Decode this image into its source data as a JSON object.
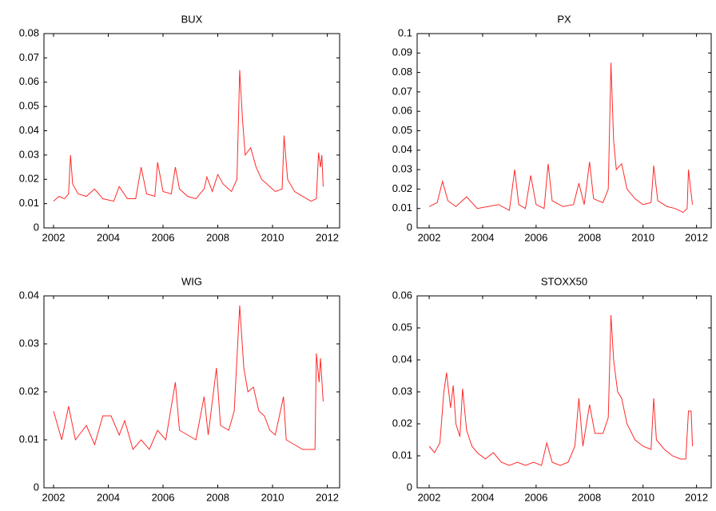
{
  "chart_data": [
    {
      "type": "line",
      "title": "BUX",
      "x": [
        2002.0,
        2002.2,
        2002.4,
        2002.55,
        2002.62,
        2002.7,
        2002.9,
        2003.2,
        2003.5,
        2003.8,
        2004.2,
        2004.4,
        2004.7,
        2005.0,
        2005.2,
        2005.4,
        2005.7,
        2005.8,
        2006.0,
        2006.3,
        2006.45,
        2006.6,
        2006.9,
        2007.2,
        2007.5,
        2007.6,
        2007.8,
        2008.0,
        2008.2,
        2008.5,
        2008.7,
        2008.8,
        2008.9,
        2009.0,
        2009.2,
        2009.4,
        2009.6,
        2009.9,
        2010.1,
        2010.35,
        2010.42,
        2010.55,
        2010.8,
        2011.1,
        2011.4,
        2011.6,
        2011.68,
        2011.75,
        2011.8,
        2011.85
      ],
      "series": [
        {
          "color": "#ff2a2a",
          "values": [
            0.011,
            0.013,
            0.012,
            0.014,
            0.03,
            0.018,
            0.014,
            0.013,
            0.016,
            0.012,
            0.011,
            0.017,
            0.012,
            0.012,
            0.025,
            0.014,
            0.013,
            0.027,
            0.015,
            0.014,
            0.025,
            0.016,
            0.013,
            0.012,
            0.016,
            0.021,
            0.015,
            0.022,
            0.018,
            0.015,
            0.02,
            0.065,
            0.045,
            0.03,
            0.033,
            0.025,
            0.02,
            0.017,
            0.015,
            0.016,
            0.038,
            0.02,
            0.015,
            0.013,
            0.011,
            0.012,
            0.031,
            0.025,
            0.03,
            0.017
          ]
        }
      ],
      "xlim": [
        2001.65,
        2012.45
      ],
      "xticks": [
        2002,
        2004,
        2006,
        2008,
        2010,
        2012
      ],
      "ylim": [
        0,
        0.08
      ],
      "yticks": [
        0,
        0.01,
        0.02,
        0.03,
        0.04,
        0.05,
        0.06,
        0.07,
        0.08
      ]
    },
    {
      "type": "line",
      "title": "PX",
      "x": [
        2002.0,
        2002.3,
        2002.5,
        2002.7,
        2003.0,
        2003.4,
        2003.8,
        2004.2,
        2004.6,
        2005.0,
        2005.2,
        2005.35,
        2005.6,
        2005.8,
        2006.0,
        2006.3,
        2006.45,
        2006.6,
        2007.0,
        2007.4,
        2007.6,
        2007.8,
        2008.0,
        2008.15,
        2008.5,
        2008.7,
        2008.8,
        2008.9,
        2009.0,
        2009.2,
        2009.4,
        2009.7,
        2010.0,
        2010.3,
        2010.4,
        2010.55,
        2010.9,
        2011.2,
        2011.5,
        2011.65,
        2011.7,
        2011.78,
        2011.85
      ],
      "series": [
        {
          "color": "#ff2a2a",
          "values": [
            0.011,
            0.013,
            0.024,
            0.014,
            0.011,
            0.016,
            0.01,
            0.011,
            0.012,
            0.009,
            0.03,
            0.012,
            0.01,
            0.027,
            0.012,
            0.01,
            0.033,
            0.014,
            0.011,
            0.012,
            0.023,
            0.012,
            0.034,
            0.015,
            0.013,
            0.02,
            0.085,
            0.045,
            0.03,
            0.033,
            0.02,
            0.015,
            0.012,
            0.013,
            0.032,
            0.014,
            0.011,
            0.01,
            0.008,
            0.01,
            0.03,
            0.02,
            0.012
          ]
        }
      ],
      "xlim": [
        2001.55,
        2012.55
      ],
      "xticks": [
        2002,
        2004,
        2006,
        2008,
        2010,
        2012
      ],
      "ylim": [
        0,
        0.1
      ],
      "yticks": [
        0,
        0.01,
        0.02,
        0.03,
        0.04,
        0.05,
        0.06,
        0.07,
        0.08,
        0.09,
        0.1
      ]
    },
    {
      "type": "line",
      "title": "WIG",
      "x": [
        2002.0,
        2002.3,
        2002.55,
        2002.8,
        2003.2,
        2003.5,
        2003.8,
        2004.1,
        2004.4,
        2004.6,
        2004.9,
        2005.2,
        2005.5,
        2005.8,
        2006.1,
        2006.45,
        2006.6,
        2006.9,
        2007.2,
        2007.5,
        2007.65,
        2007.95,
        2008.1,
        2008.4,
        2008.6,
        2008.8,
        2008.95,
        2009.1,
        2009.3,
        2009.5,
        2009.7,
        2009.9,
        2010.1,
        2010.4,
        2010.5,
        2010.8,
        2011.1,
        2011.4,
        2011.55,
        2011.6,
        2011.7,
        2011.75,
        2011.85
      ],
      "series": [
        {
          "color": "#ff2a2a",
          "values": [
            0.016,
            0.01,
            0.017,
            0.01,
            0.013,
            0.009,
            0.015,
            0.015,
            0.011,
            0.014,
            0.008,
            0.01,
            0.008,
            0.012,
            0.01,
            0.022,
            0.012,
            0.011,
            0.01,
            0.019,
            0.011,
            0.025,
            0.013,
            0.012,
            0.016,
            0.038,
            0.025,
            0.02,
            0.021,
            0.016,
            0.015,
            0.012,
            0.011,
            0.019,
            0.01,
            0.009,
            0.008,
            0.008,
            0.008,
            0.028,
            0.022,
            0.027,
            0.018
          ]
        }
      ],
      "xlim": [
        2001.65,
        2012.45
      ],
      "xticks": [
        2002,
        2004,
        2006,
        2008,
        2010,
        2012
      ],
      "ylim": [
        0,
        0.04
      ],
      "yticks": [
        0,
        0.01,
        0.02,
        0.03,
        0.04
      ]
    },
    {
      "type": "line",
      "title": "STOXX50",
      "x": [
        2002.0,
        2002.2,
        2002.4,
        2002.55,
        2002.65,
        2002.8,
        2002.9,
        2003.0,
        2003.15,
        2003.25,
        2003.4,
        2003.6,
        2003.8,
        2004.1,
        2004.4,
        2004.7,
        2005.0,
        2005.3,
        2005.6,
        2005.9,
        2006.2,
        2006.4,
        2006.6,
        2006.9,
        2007.2,
        2007.45,
        2007.6,
        2007.75,
        2008.0,
        2008.2,
        2008.5,
        2008.7,
        2008.8,
        2008.9,
        2009.05,
        2009.2,
        2009.4,
        2009.7,
        2010.0,
        2010.3,
        2010.4,
        2010.5,
        2010.8,
        2011.1,
        2011.4,
        2011.6,
        2011.7,
        2011.8,
        2011.85
      ],
      "series": [
        {
          "color": "#ff2a2a",
          "values": [
            0.013,
            0.011,
            0.014,
            0.03,
            0.036,
            0.025,
            0.032,
            0.02,
            0.016,
            0.031,
            0.018,
            0.013,
            0.011,
            0.009,
            0.011,
            0.008,
            0.007,
            0.008,
            0.007,
            0.008,
            0.007,
            0.014,
            0.008,
            0.007,
            0.008,
            0.013,
            0.028,
            0.013,
            0.026,
            0.017,
            0.017,
            0.022,
            0.054,
            0.04,
            0.03,
            0.028,
            0.02,
            0.015,
            0.013,
            0.012,
            0.028,
            0.015,
            0.012,
            0.01,
            0.009,
            0.009,
            0.024,
            0.024,
            0.013
          ]
        }
      ],
      "xlim": [
        2001.55,
        2012.55
      ],
      "xticks": [
        2002,
        2004,
        2006,
        2008,
        2010,
        2012
      ],
      "ylim": [
        0,
        0.06
      ],
      "yticks": [
        0,
        0.01,
        0.02,
        0.03,
        0.04,
        0.05,
        0.06
      ]
    }
  ]
}
